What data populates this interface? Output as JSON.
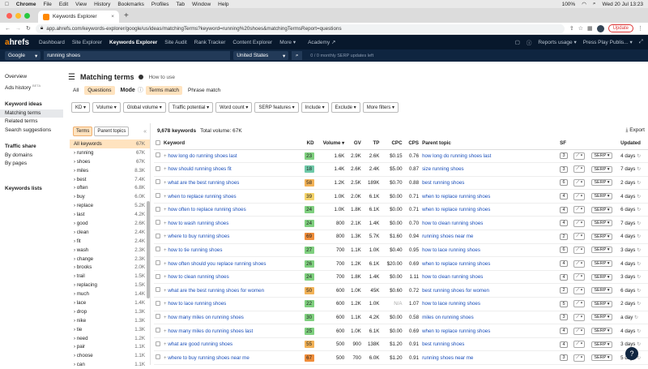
{
  "mac_menu": {
    "apple": "",
    "items": [
      "Chrome",
      "File",
      "Edit",
      "View",
      "History",
      "Bookmarks",
      "Profiles",
      "Tab",
      "Window",
      "Help"
    ],
    "battery": "100%",
    "clock": "Wed 20 Jul  13:23"
  },
  "browser": {
    "tab_title": "Keywords Explorer",
    "tab_close": "×",
    "new_tab": "+",
    "url": "app.ahrefs.com/keywords-explorer/google/us/ideas/matchingTerms?keyword=running%20shoes&matchingTermsReport=questions",
    "update_label": "Update"
  },
  "appnav": {
    "logo_a": "a",
    "logo_rest": "hrefs",
    "items": [
      "Dashboard",
      "Site Explorer",
      "Keywords Explorer",
      "Site Audit",
      "Rank Tracker",
      "Content Explorer",
      "More ▾",
      "Academy ↗"
    ],
    "reports_usage": "Reports usage ▾",
    "account": "Press Play Publis... ▾"
  },
  "search": {
    "engine": "Google",
    "query": "running shoes",
    "country": "United States",
    "usage": "0 / 0 monthly SERP updates left"
  },
  "leftnav": {
    "overview": "Overview",
    "ads_history": "Ads history",
    "beta": "BETA",
    "group_ideas": "Keyword ideas",
    "matching": "Matching terms",
    "related": "Related terms",
    "suggestions": "Search suggestions",
    "group_traffic": "Traffic share",
    "by_domains": "By domains",
    "by_pages": "By pages",
    "lists": "Keywords lists"
  },
  "header": {
    "title": "Matching terms",
    "how_to": "How to use",
    "mode_label": "Mode",
    "tabs": [
      "All",
      "Questions"
    ],
    "modes": [
      "Terms match",
      "Phrase match"
    ]
  },
  "filters": [
    "KD ▾",
    "Volume ▾",
    "Global volume ▾",
    "Traffic potential ▾",
    "Word count ▾",
    "SERP features ▾",
    "Include ▾",
    "Exclude ▾",
    "More filters ▾"
  ],
  "terms": {
    "tabs": [
      "Terms",
      "Parent topics"
    ],
    "collapse": "«",
    "rows": [
      {
        "t": "All keywords",
        "c": "67K"
      },
      {
        "t": "running",
        "c": "67K"
      },
      {
        "t": "shoes",
        "c": "67K"
      },
      {
        "t": "miles",
        "c": "8.3K"
      },
      {
        "t": "best",
        "c": "7.4K"
      },
      {
        "t": "often",
        "c": "6.8K"
      },
      {
        "t": "buy",
        "c": "6.0K"
      },
      {
        "t": "replace",
        "c": "5.2K"
      },
      {
        "t": "last",
        "c": "4.2K"
      },
      {
        "t": "good",
        "c": "2.6K"
      },
      {
        "t": "clean",
        "c": "2.4K"
      },
      {
        "t": "fit",
        "c": "2.4K"
      },
      {
        "t": "wash",
        "c": "2.3K"
      },
      {
        "t": "change",
        "c": "2.3K"
      },
      {
        "t": "brooks",
        "c": "2.0K"
      },
      {
        "t": "trail",
        "c": "1.5K"
      },
      {
        "t": "replacing",
        "c": "1.5K"
      },
      {
        "t": "much",
        "c": "1.4K"
      },
      {
        "t": "lace",
        "c": "1.4K"
      },
      {
        "t": "drop",
        "c": "1.3K"
      },
      {
        "t": "nike",
        "c": "1.3K"
      },
      {
        "t": "tie",
        "c": "1.3K"
      },
      {
        "t": "need",
        "c": "1.2K"
      },
      {
        "t": "pair",
        "c": "1.1K"
      },
      {
        "t": "choose",
        "c": "1.1K"
      },
      {
        "t": "can",
        "c": "1.1K"
      }
    ]
  },
  "results": {
    "count": "9,678 keywords",
    "total": "Total volume: 67K",
    "export": "Export",
    "columns": [
      "Keyword",
      "KD",
      "Volume ▾",
      "GV",
      "TP",
      "CPC",
      "CPS",
      "Parent topic",
      "SF",
      "Updated"
    ],
    "rows": [
      {
        "kw": "how long do running shoes last",
        "kd": "23",
        "vol": "1.6K",
        "gv": "2.9K",
        "tp": "2.6K",
        "cpc": "$0.15",
        "cps": "0.76",
        "pt": "how long do running shoes last",
        "sf": "3",
        "up": "4 days"
      },
      {
        "kw": "how should running shoes fit",
        "kd": "18",
        "vol": "1.4K",
        "gv": "2.6K",
        "tp": "2.4K",
        "cpc": "$5.00",
        "cps": "0.87",
        "pt": "size running shoes",
        "sf": "3",
        "up": "7 days"
      },
      {
        "kw": "what are the best running shoes",
        "kd": "58",
        "vol": "1.2K",
        "gv": "2.5K",
        "tp": "189K",
        "cpc": "$0.70",
        "cps": "0.88",
        "pt": "best running shoes",
        "sf": "6",
        "up": "2 days"
      },
      {
        "kw": "when to replace running shoes",
        "kd": "39",
        "vol": "1.0K",
        "gv": "2.0K",
        "tp": "6.1K",
        "cpc": "$0.00",
        "cps": "0.71",
        "pt": "when to replace running shoes",
        "sf": "4",
        "up": "4 days"
      },
      {
        "kw": "how often to replace running shoes",
        "kd": "24",
        "vol": "1.0K",
        "gv": "1.8K",
        "tp": "6.1K",
        "cpc": "$0.00",
        "cps": "0.71",
        "pt": "when to replace running shoes",
        "sf": "4",
        "up": "6 days"
      },
      {
        "kw": "how to wash running shoes",
        "kd": "24",
        "vol": "800",
        "gv": "2.1K",
        "tp": "1.4K",
        "cpc": "$0.00",
        "cps": "0.70",
        "pt": "how to clean running shoes",
        "sf": "4",
        "up": "7 days"
      },
      {
        "kw": "where to buy running shoes",
        "kd": "69",
        "vol": "800",
        "gv": "1.3K",
        "tp": "5.7K",
        "cpc": "$1.60",
        "cps": "0.94",
        "pt": "running shoes near me",
        "sf": "2",
        "up": "4 days"
      },
      {
        "kw": "how to tie running shoes",
        "kd": "27",
        "vol": "700",
        "gv": "1.1K",
        "tp": "1.0K",
        "cpc": "$0.40",
        "cps": "0.95",
        "pt": "how to lace running shoes",
        "sf": "6",
        "up": "3 days"
      },
      {
        "kw": "how often should you replace running shoes",
        "kd": "26",
        "vol": "700",
        "gv": "1.2K",
        "tp": "6.1K",
        "cpc": "$20.00",
        "cps": "0.69",
        "pt": "when to replace running shoes",
        "sf": "4",
        "up": "4 days"
      },
      {
        "kw": "how to clean running shoes",
        "kd": "24",
        "vol": "700",
        "gv": "1.8K",
        "tp": "1.4K",
        "cpc": "$0.00",
        "cps": "1.11",
        "pt": "how to clean running shoes",
        "sf": "4",
        "up": "3 days"
      },
      {
        "kw": "what are the best running shoes for women",
        "kd": "50",
        "vol": "600",
        "gv": "1.0K",
        "tp": "45K",
        "cpc": "$0.60",
        "cps": "0.72",
        "pt": "best running shoes for women",
        "sf": "2",
        "up": "6 days"
      },
      {
        "kw": "how to lace running shoes",
        "kd": "22",
        "vol": "600",
        "gv": "1.2K",
        "tp": "1.0K",
        "cpc": "N/A",
        "cps": "1.07",
        "pt": "how to lace running shoes",
        "sf": "5",
        "up": "2 days"
      },
      {
        "kw": "how many miles on running shoes",
        "kd": "30",
        "vol": "600",
        "gv": "1.1K",
        "tp": "4.2K",
        "cpc": "$0.00",
        "cps": "0.58",
        "pt": "miles on running shoes",
        "sf": "3",
        "up": "a day"
      },
      {
        "kw": "how many miles do running shoes last",
        "kd": "25",
        "vol": "600",
        "gv": "1.0K",
        "tp": "6.1K",
        "cpc": "$0.00",
        "cps": "0.69",
        "pt": "when to replace running shoes",
        "sf": "4",
        "up": "4 days"
      },
      {
        "kw": "what are good running shoes",
        "kd": "55",
        "vol": "500",
        "gv": "900",
        "tp": "138K",
        "cpc": "$1.20",
        "cps": "0.91",
        "pt": "best running shoes",
        "sf": "4",
        "up": "3 days"
      },
      {
        "kw": "where to buy running shoes near me",
        "kd": "67",
        "vol": "500",
        "gv": "700",
        "tp": "6.0K",
        "cpc": "$1.20",
        "cps": "0.91",
        "pt": "running shoes near me",
        "sf": "3",
        "up": "5 days"
      }
    ]
  },
  "kd_colors": {
    "low": "#7fd07f",
    "mid": "#f4d36a",
    "midhigh": "#f2b257",
    "high": "#ef8d3a",
    "teal": "#6ec9a8"
  },
  "help_label": "?"
}
